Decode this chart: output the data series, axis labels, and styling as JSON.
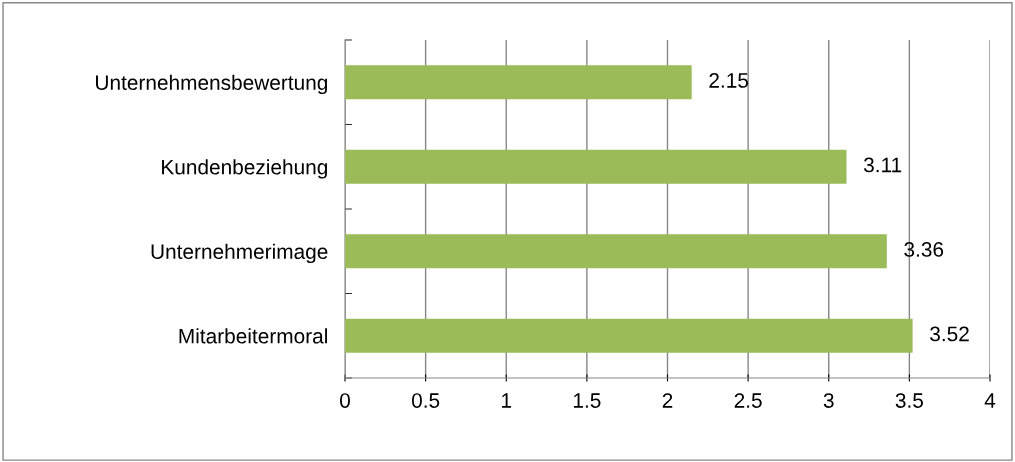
{
  "chart_data": {
    "type": "bar",
    "orientation": "horizontal",
    "categories": [
      "Unternehmensbewertung",
      "Kundenbeziehung",
      "Unternehmerimage",
      "Mitarbeitermoral"
    ],
    "values": [
      2.15,
      3.11,
      3.36,
      3.52
    ],
    "color": "#9bbb59",
    "xlim": [
      0,
      4
    ],
    "xticks": [
      0,
      0.5,
      1,
      1.5,
      2,
      2.5,
      3,
      3.5,
      4
    ],
    "grid": "x",
    "data_labels": true
  }
}
